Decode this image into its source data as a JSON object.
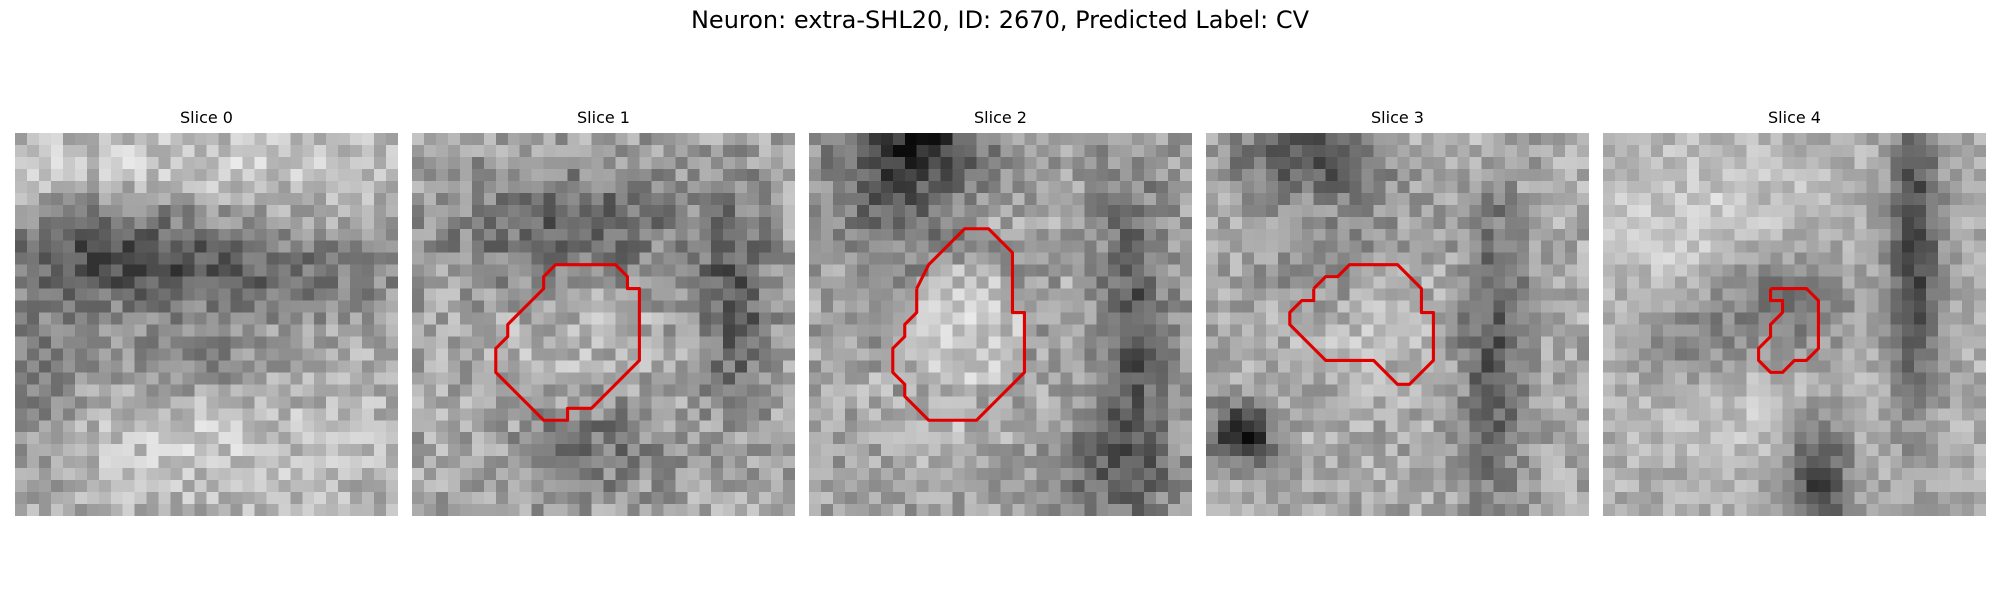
{
  "title": "Neuron: extra-SHL20, ID: 2670, Predicted Label: CV",
  "outline_color": "#e00000",
  "panels": [
    {
      "title": "Slice 0",
      "outline": []
    },
    {
      "title": "Slice 1",
      "outline": []
    },
    {
      "title": "Slice 2",
      "outline": []
    },
    {
      "title": "Slice 3",
      "outline": []
    },
    {
      "title": "Slice 4",
      "outline": []
    }
  ]
}
